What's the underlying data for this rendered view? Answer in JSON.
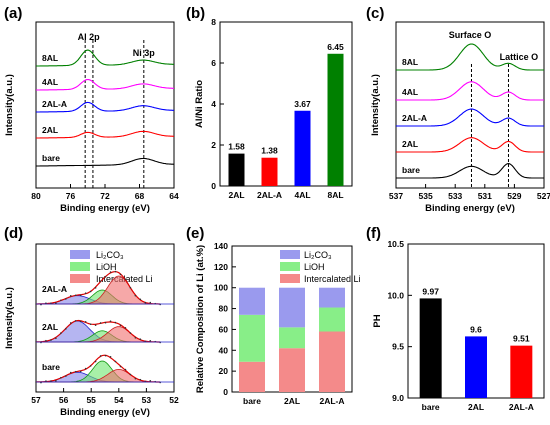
{
  "panels": [
    {
      "id": "a",
      "tag": "(a)"
    },
    {
      "id": "b",
      "tag": "(b)"
    },
    {
      "id": "c",
      "tag": "(c)"
    },
    {
      "id": "d",
      "tag": "(d)"
    },
    {
      "id": "e",
      "tag": "(e)"
    },
    {
      "id": "f",
      "tag": "(f)"
    }
  ],
  "chart_data": [
    {
      "panel": "a",
      "type": "line",
      "xlabel": "Binding energy (eV)",
      "ylabel": "Intensity(a.u.)",
      "xlim": [
        80,
        64
      ],
      "xticks": [
        "80",
        "76",
        "72",
        "68",
        "64"
      ],
      "annotations": [
        "Al 2p",
        "Ni 3p"
      ],
      "reference_lines_x": [
        74.3,
        73.4,
        67.5
      ],
      "series": [
        {
          "label": "bare",
          "color": "#000000",
          "al_peak": 0.0,
          "ni_peak": 0.35
        },
        {
          "label": "2AL",
          "color": "#ff0000",
          "al_peak": 0.28,
          "ni_peak": 0.3
        },
        {
          "label": "2AL-A",
          "color": "#0000ff",
          "al_peak": 0.5,
          "ni_peak": 0.28
        },
        {
          "label": "4AL",
          "color": "#ff00ff",
          "al_peak": 0.55,
          "ni_peak": 0.27
        },
        {
          "label": "8AL",
          "color": "#008000",
          "al_peak": 0.85,
          "ni_peak": 0.26
        }
      ]
    },
    {
      "panel": "b",
      "type": "bar",
      "ylabel": "Al/Ni Ratio",
      "ylim": [
        0,
        8
      ],
      "yticks": [
        "0",
        "2",
        "4",
        "6",
        "8"
      ],
      "categories": [
        "2AL",
        "2AL-A",
        "4AL",
        "8AL"
      ],
      "values": [
        1.58,
        1.38,
        3.67,
        6.45
      ],
      "value_labels": [
        "1.58",
        "1.38",
        "3.67",
        "6.45"
      ],
      "colors": [
        "#000000",
        "#ff0000",
        "#0000ff",
        "#008000"
      ]
    },
    {
      "panel": "c",
      "type": "line",
      "xlabel": "Binding energy (eV)",
      "ylabel": "Intensity(a.u.)",
      "xlim": [
        537,
        527
      ],
      "xticks": [
        "537",
        "535",
        "533",
        "531",
        "529",
        "527"
      ],
      "annotations": [
        "Surface O",
        "Lattice O"
      ],
      "reference_lines_x": [
        531.9,
        529.4
      ],
      "series": [
        {
          "label": "bare",
          "color": "#000000",
          "surface_peak": 0.45,
          "lattice_peak": 0.55
        },
        {
          "label": "2AL",
          "color": "#ff0000",
          "surface_peak": 0.55,
          "lattice_peak": 0.4
        },
        {
          "label": "2AL-A",
          "color": "#0000ff",
          "surface_peak": 0.65,
          "lattice_peak": 0.3
        },
        {
          "label": "4AL",
          "color": "#ff00ff",
          "surface_peak": 0.7,
          "lattice_peak": 0.3
        },
        {
          "label": "8AL",
          "color": "#008000",
          "surface_peak": 1.0,
          "lattice_peak": 0.25
        }
      ]
    },
    {
      "panel": "d",
      "type": "area",
      "xlabel": "Binding energy (eV)",
      "ylabel": "Intensity(a.u.)",
      "xlim": [
        57,
        52
      ],
      "xticks": [
        "57",
        "56",
        "55",
        "54",
        "53",
        "52"
      ],
      "legend": [
        "Li₂CO₃",
        "LiOH",
        "Intercalated Li"
      ],
      "legend_colors": [
        "#9a9aee",
        "#88ee88",
        "#f48a8a"
      ],
      "series": [
        {
          "label": "bare",
          "li2co3": 0.35,
          "lioh": 0.75,
          "intercalated": 0.45
        },
        {
          "label": "2AL",
          "li2co3": 0.75,
          "lioh": 0.4,
          "intercalated": 0.55
        },
        {
          "label": "2AL-A",
          "li2co3": 0.3,
          "lioh": 0.5,
          "intercalated": 1.0
        }
      ]
    },
    {
      "panel": "e",
      "type": "bar",
      "stacked": true,
      "ylabel": "Relative Composition of Li (at.%)",
      "ylim": [
        0,
        140
      ],
      "yticks": [
        "0",
        "20",
        "40",
        "60",
        "80",
        "100",
        "120",
        "140"
      ],
      "categories": [
        "bare",
        "2AL",
        "2AL-A"
      ],
      "legend": [
        "Li₂CO₃",
        "LiOH",
        "Intercalated Li"
      ],
      "series": [
        {
          "name": "Intercalated Li",
          "color": "#f48a8a",
          "values": [
            29,
            42,
            58
          ]
        },
        {
          "name": "LiOH",
          "color": "#88ee88",
          "values": [
            45,
            20,
            23
          ]
        },
        {
          "name": "Li₂CO₃",
          "color": "#9a9aee",
          "values": [
            26,
            38,
            19
          ]
        }
      ]
    },
    {
      "panel": "f",
      "type": "bar",
      "ylabel": "PH",
      "ylim": [
        9.0,
        10.5
      ],
      "yticks": [
        "9.0",
        "9.5",
        "10.0",
        "10.5"
      ],
      "categories": [
        "bare",
        "2AL",
        "2AL-A"
      ],
      "values": [
        9.97,
        9.6,
        9.51
      ],
      "value_labels": [
        "9.97",
        "9.6",
        "9.51"
      ],
      "colors": [
        "#000000",
        "#0000ff",
        "#ff0000"
      ]
    }
  ]
}
